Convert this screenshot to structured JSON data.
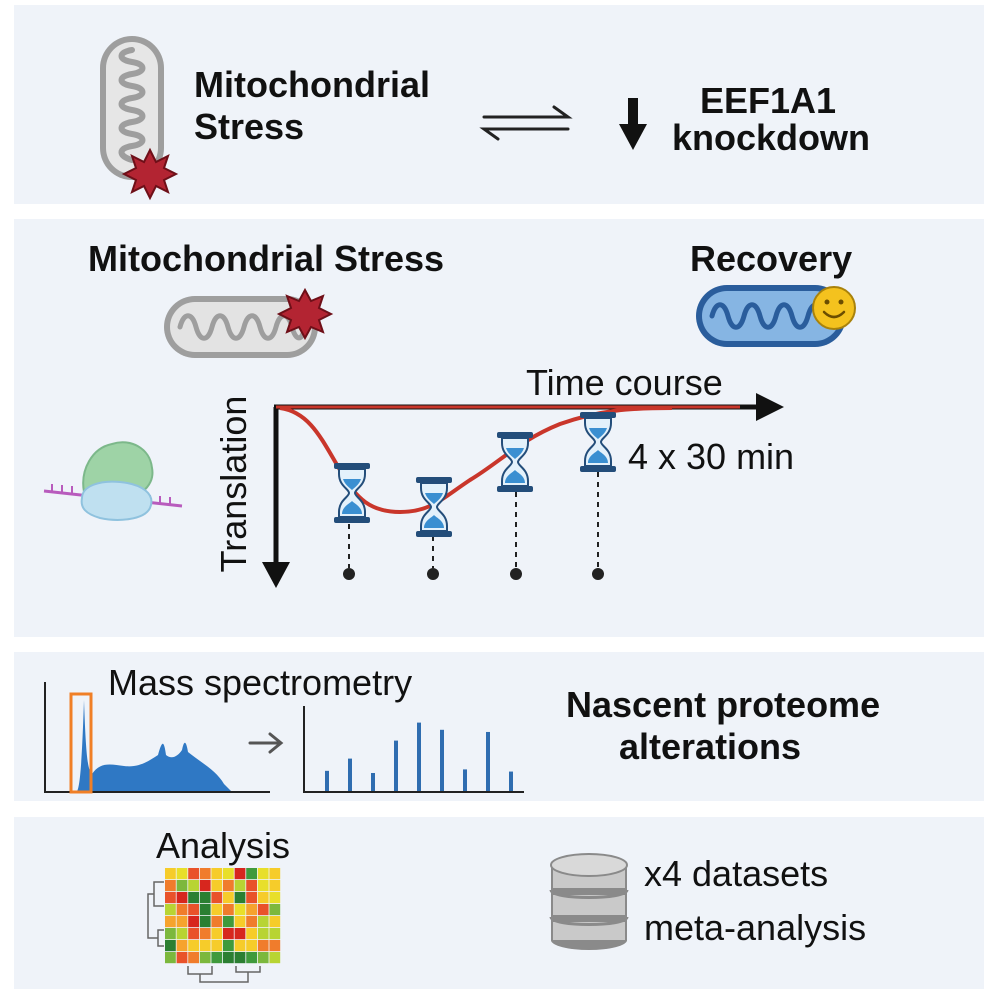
{
  "panel1": {
    "stress_line1": "Mitochondrial",
    "stress_line2": "Stress",
    "knockdown_line1": "EEF1A1",
    "knockdown_line2": "knockdown"
  },
  "panel2": {
    "stress_title": "Mitochondrial Stress",
    "recovery_title": "Recovery",
    "x_axis_label": "Time course",
    "y_axis_label": "Translation",
    "interval_label": "4 x 30 min"
  },
  "panel3": {
    "ms_label": "Mass spectrometry",
    "result_line1": "Nascent proteome",
    "result_line2": "alterations",
    "spectrum_bar_values": [
      0.28,
      0.45,
      0.25,
      0.7,
      0.95,
      0.85,
      0.3,
      0.82,
      0.27
    ]
  },
  "panel4": {
    "analysis_label": "Analysis",
    "datasets_line1": "x4  datasets",
    "datasets_line2": "meta-analysis",
    "heatmap_colors": [
      "#d7261e",
      "#e9522a",
      "#f07c2c",
      "#f6a32d",
      "#f6cc2a",
      "#e8df2a",
      "#b8d433",
      "#7cb83d",
      "#3f9a3c",
      "#2b7f32"
    ]
  },
  "colors": {
    "panel_bg": "#eff3f9",
    "curve": "#c9362b",
    "hourglass": "#3a8fd1",
    "spectrum": "#2f6db0",
    "highlight": "#f07f26",
    "star": "#b32432"
  }
}
